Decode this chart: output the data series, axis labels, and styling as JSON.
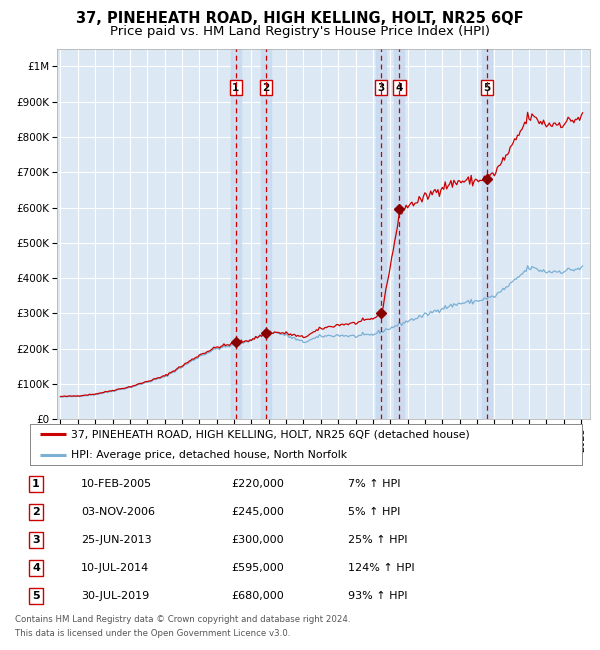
{
  "title": "37, PINEHEATH ROAD, HIGH KELLING, HOLT, NR25 6QF",
  "subtitle": "Price paid vs. HM Land Registry's House Price Index (HPI)",
  "legend_property": "37, PINEHEATH ROAD, HIGH KELLING, HOLT, NR25 6QF (detached house)",
  "legend_hpi": "HPI: Average price, detached house, North Norfolk",
  "footer_line1": "Contains HM Land Registry data © Crown copyright and database right 2024.",
  "footer_line2": "This data is licensed under the Open Government Licence v3.0.",
  "transactions": [
    {
      "num": 1,
      "date": "10-FEB-2005",
      "price": 220000,
      "price_str": "£220,000",
      "pct": "7%",
      "dir": "↑"
    },
    {
      "num": 2,
      "date": "03-NOV-2006",
      "price": 245000,
      "price_str": "£245,000",
      "pct": "5%",
      "dir": "↑"
    },
    {
      "num": 3,
      "date": "25-JUN-2013",
      "price": 300000,
      "price_str": "£300,000",
      "pct": "25%",
      "dir": "↑"
    },
    {
      "num": 4,
      "date": "10-JUL-2014",
      "price": 595000,
      "price_str": "£595,000",
      "pct": "124%",
      "dir": "↑"
    },
    {
      "num": 5,
      "date": "30-JUL-2019",
      "price": 680000,
      "price_str": "£680,000",
      "pct": "93%",
      "dir": "↑"
    }
  ],
  "transaction_dates_decimal": [
    2005.11,
    2006.84,
    2013.48,
    2014.52,
    2019.58
  ],
  "transaction_prices": [
    220000,
    245000,
    300000,
    595000,
    680000
  ],
  "ylim": [
    0,
    1050000
  ],
  "yticks": [
    0,
    100000,
    200000,
    300000,
    400000,
    500000,
    600000,
    700000,
    800000,
    900000,
    1000000
  ],
  "ytick_labels": [
    "£0",
    "£100K",
    "£200K",
    "£300K",
    "£400K",
    "£500K",
    "£600K",
    "£700K",
    "£800K",
    "£900K",
    "£1M"
  ],
  "xlim_start": 1994.8,
  "xlim_end": 2025.5,
  "background_color": "#dce9f5",
  "grid_color": "#ffffff",
  "red_line_color": "#cc0000",
  "blue_line_color": "#7bafd4",
  "dashed_color": "#cc0000",
  "highlight_band_color": "#c8daf0",
  "marker_color": "#880000",
  "title_fontsize": 10.5,
  "subtitle_fontsize": 9.5
}
